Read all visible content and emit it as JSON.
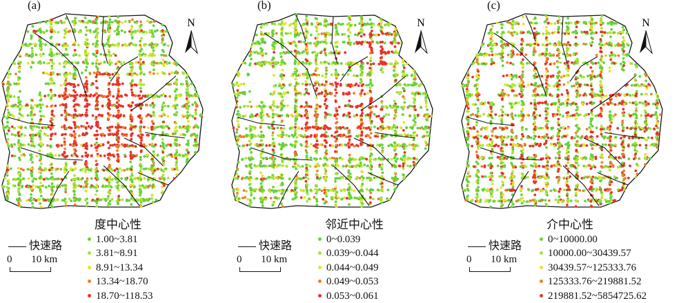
{
  "road_label": "快速路",
  "scale": {
    "zero": "0",
    "ten": "10",
    "unit": "km"
  },
  "north_label": "N",
  "class_colors": [
    "#64d23c",
    "#a9e23a",
    "#e3e22c",
    "#f07c2d",
    "#e8322a"
  ],
  "road_color": "#111111",
  "panels": [
    {
      "label": "(a)",
      "legend_title": "度中心性",
      "classes": [
        "1.00~3.81",
        "3.81~8.91",
        "8.91~13.34",
        "13.34~18.70",
        "18.70~118.53"
      ],
      "pattern": "dense red street grid concentrated in central core, spreading along main roads to the southwest and east"
    },
    {
      "label": "(b)",
      "legend_title": "邻近中心性",
      "classes": [
        "0~0.039",
        "0.039~0.044",
        "0.044~0.049",
        "0.049~0.053",
        "0.053~0.061"
      ],
      "pattern": "red/orange core in the center and northeast, green points toward the periphery"
    },
    {
      "label": "(c)",
      "legend_title": "介中心性",
      "classes": [
        "0~10000.00",
        "10000.00~30439.57",
        "30439.57~125333.76",
        "125333.76~219881.52",
        "219881.52~5854725.62"
      ],
      "pattern": "red points scattered along routes across the whole area, mixed with yellow and green"
    }
  ]
}
